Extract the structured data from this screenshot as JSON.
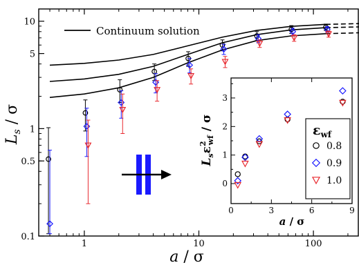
{
  "chart_data": [
    {
      "type": "scatter",
      "xscale": "log",
      "yscale": "log",
      "xlim": [
        0.4,
        250
      ],
      "ylim": [
        0.1,
        13
      ],
      "xlabel": {
        "main": "a",
        "sep": " / ",
        "unit": "σ"
      },
      "ylabel": {
        "main": "L",
        "sub": "s",
        "sep": " / ",
        "unit": "σ"
      },
      "xticks": [
        {
          "value": 1,
          "label": "1"
        },
        {
          "value": 10,
          "label": "10"
        },
        {
          "value": 100,
          "label": "100"
        }
      ],
      "yticks": [
        {
          "value": 0.1,
          "label": "0.1"
        },
        {
          "value": 0.5,
          "label": "0.5"
        },
        {
          "value": 1,
          "label": "1"
        },
        {
          "value": 5,
          "label": "5"
        },
        {
          "value": 10,
          "label": "10"
        }
      ],
      "legend": {
        "label": "Continuum solution",
        "position": "top-left"
      },
      "x": [
        0.5,
        1.05,
        2.1,
        4.2,
        8.3,
        16.5,
        33,
        66,
        132
      ],
      "series": [
        {
          "eps": 0.8,
          "marker": "circle",
          "color": "#000000",
          "y": [
            0.52,
            1.4,
            2.3,
            3.4,
            4.5,
            6.0,
            7.3,
            8.4,
            8.8
          ],
          "err": [
            0.5,
            0.45,
            0.55,
            0.6,
            0.7,
            0.7,
            0.7,
            0.7,
            0.6
          ]
        },
        {
          "eps": 0.9,
          "marker": "diamond",
          "color": "#1a1aff",
          "y": [
            0.13,
            1.05,
            1.75,
            2.7,
            3.9,
            5.5,
            6.9,
            8.0,
            8.4
          ],
          "err": [
            0.5,
            0.5,
            0.5,
            0.55,
            0.6,
            0.6,
            0.6,
            0.6,
            0.5
          ]
        },
        {
          "eps": 1.0,
          "marker": "triangle",
          "color": "#e8282e",
          "y": [
            0.0,
            0.7,
            1.5,
            2.3,
            3.1,
            4.2,
            6.2,
            7.0,
            7.6
          ],
          "err": [
            0.0,
            0.5,
            0.6,
            0.5,
            0.5,
            0.5,
            0.5,
            0.5,
            0.5
          ]
        }
      ],
      "continuum_lines": [
        {
          "x": [
            0.5,
            1,
            2,
            4,
            8,
            16,
            32,
            64,
            128,
            250
          ],
          "y": [
            3.9,
            4.05,
            4.35,
            4.9,
            5.9,
            7.1,
            8.2,
            8.95,
            9.35,
            9.5
          ]
        },
        {
          "x": [
            0.5,
            1,
            2,
            4,
            8,
            16,
            32,
            64,
            128,
            250
          ],
          "y": [
            2.75,
            2.9,
            3.2,
            3.8,
            4.9,
            6.3,
            7.5,
            8.3,
            8.7,
            8.85
          ]
        },
        {
          "x": [
            0.5,
            1,
            2,
            4,
            8,
            16,
            32,
            64,
            128,
            250
          ],
          "y": [
            1.95,
            2.1,
            2.4,
            3.0,
            4.1,
            5.4,
            6.6,
            7.3,
            7.65,
            7.8
          ]
        }
      ]
    },
    {
      "type": "scatter",
      "inset": true,
      "xlim": [
        0,
        9
      ],
      "ylim": [
        -0.7,
        3.7
      ],
      "xlabel": {
        "main": "a",
        "sep": " / ",
        "unit": "σ"
      },
      "ylabel": {
        "main": "L",
        "sub": "s",
        "mid": "ε",
        "sup": "2",
        "sub2": "wf",
        "sep": " / ",
        "unit": "σ"
      },
      "xticks": [
        {
          "value": 0,
          "label": "0"
        },
        {
          "value": 3,
          "label": "3"
        },
        {
          "value": 6,
          "label": "6"
        },
        {
          "value": 9,
          "label": "9"
        }
      ],
      "yticks": [
        {
          "value": 0,
          "label": "0"
        },
        {
          "value": 1,
          "label": "1"
        },
        {
          "value": 2,
          "label": "2"
        },
        {
          "value": 3,
          "label": "3"
        }
      ],
      "legend": {
        "title": "ε",
        "title_sub": "wf",
        "position": "bottom-right",
        "entries": [
          "0.8",
          "0.9",
          "1.0"
        ]
      },
      "x": [
        0.5,
        1.05,
        2.1,
        4.2,
        8.3
      ],
      "series": [
        {
          "eps": 0.8,
          "marker": "circle",
          "color": "#000000",
          "y": [
            0.33,
            0.95,
            1.48,
            2.25,
            2.87
          ]
        },
        {
          "eps": 0.9,
          "marker": "diamond",
          "color": "#1a1aff",
          "y": [
            0.1,
            0.92,
            1.57,
            2.43,
            3.25
          ]
        },
        {
          "eps": 1.0,
          "marker": "triangle",
          "color": "#e8282e",
          "y": [
            -0.05,
            0.7,
            1.38,
            2.22,
            2.83
          ]
        }
      ]
    }
  ],
  "colors": {
    "arrow_bars": "#1a1aff",
    "axis": "#000000"
  }
}
